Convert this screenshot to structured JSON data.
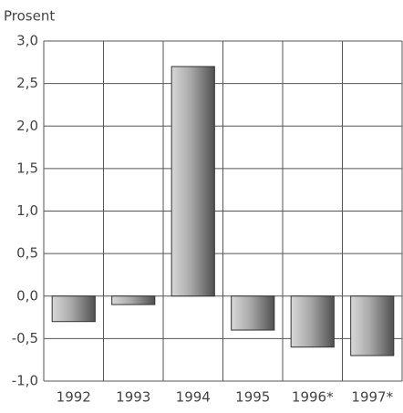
{
  "chart_data": {
    "type": "bar",
    "y_label": "Prosent",
    "categories": [
      "1992",
      "1993",
      "1994",
      "1995",
      "1996*",
      "1997*"
    ],
    "values": [
      -0.3,
      -0.1,
      2.7,
      -0.4,
      -0.6,
      -0.7
    ],
    "color": "#8c8c8c",
    "ylim": [
      -1.0,
      3.0
    ],
    "yticks": [
      {
        "value": -1.0,
        "label": "-1,0"
      },
      {
        "value": -0.5,
        "label": "-0,5"
      },
      {
        "value": 0.0,
        "label": "0,0"
      },
      {
        "value": 0.5,
        "label": "0,5"
      },
      {
        "value": 1.0,
        "label": "1,0"
      },
      {
        "value": 1.5,
        "label": "1,5"
      },
      {
        "value": 2.0,
        "label": "2,0"
      },
      {
        "value": 2.5,
        "label": "2,5"
      },
      {
        "value": 3.0,
        "label": "3,0"
      }
    ],
    "grid": true
  }
}
